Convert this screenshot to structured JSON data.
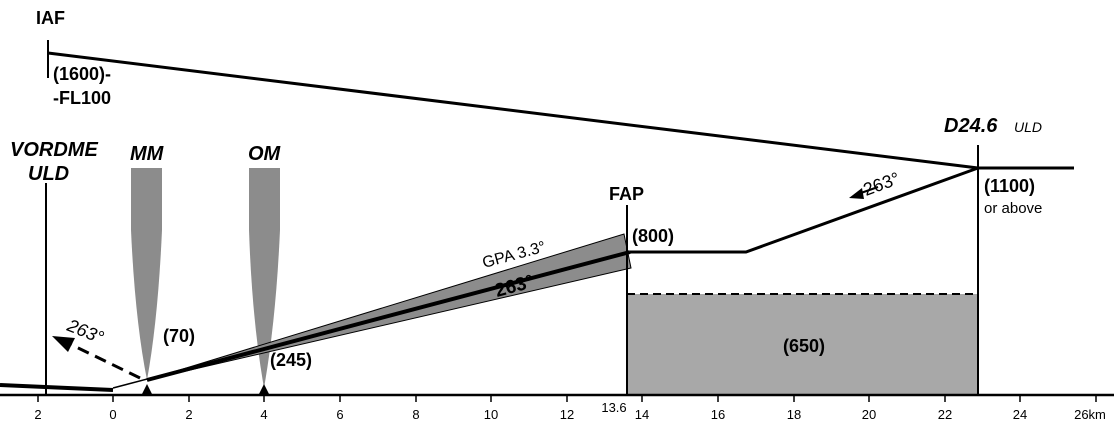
{
  "chart": {
    "fixes": {
      "iaf": "IAF",
      "vordme_line1": "VORDME",
      "vordme_line2": "ULD",
      "mm": "MM",
      "om": "OM",
      "fap": "FAP",
      "d246_main": "D24.6",
      "d246_sub": "ULD"
    },
    "altitudes": {
      "iaf_line1": "(1600)-",
      "iaf_line2": "-FL100",
      "d246_alt": "(1100)",
      "d246_note": "or above",
      "fap_alt": "(800)",
      "mm_alt": "(70)",
      "om_alt": "(245)",
      "msa_box": "(650)"
    },
    "tracks": {
      "inbound_upper": "263°",
      "gpa": "GPA 3.3°",
      "final": "263°",
      "missed_approach": "263°"
    },
    "axis": {
      "ticks": [
        "2",
        "0",
        "2",
        "4",
        "6",
        "8",
        "10",
        "12",
        "14",
        "16",
        "18",
        "20",
        "22",
        "24",
        "26km"
      ],
      "fap_distance": "13.6"
    }
  }
}
